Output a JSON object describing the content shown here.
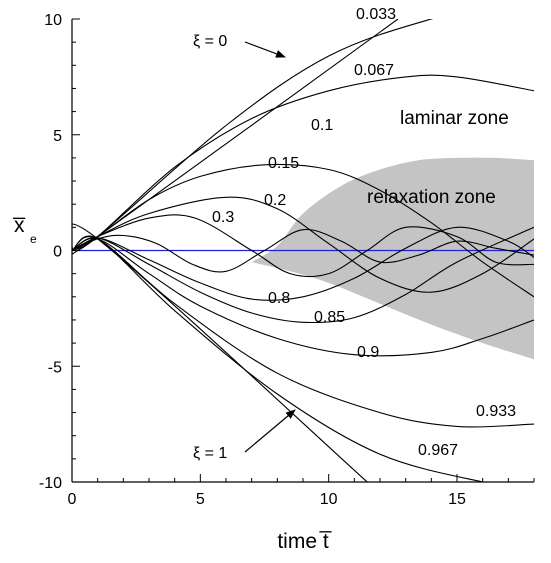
{
  "chart_data": {
    "type": "line",
    "title": "",
    "xlabel": "time t̅",
    "ylabel": "x̅",
    "ylabel_sub": "e",
    "xlim": [
      0,
      18
    ],
    "ylim": [
      -10,
      10
    ],
    "x_ticks": [
      "0",
      "5",
      "10",
      "15"
    ],
    "y_ticks": [
      "10",
      "5",
      "0",
      "-5",
      "-10"
    ],
    "grid": false,
    "legend": "none",
    "colors": {
      "curves": "#000000",
      "zero_line": "#1f1fe0",
      "relaxation_zone": "#c4c4c4"
    },
    "curve_labels": [
      "0.033",
      "0.067",
      "0.1",
      "0.15",
      "0.2",
      "0.3",
      "0.8",
      "0.85",
      "0.9",
      "0.933",
      "0.967"
    ],
    "annotations": {
      "xi_zero": "ξ = 0",
      "xi_one": "ξ = 1",
      "laminar_zone": "laminar zone",
      "relaxation_zone": "relaxation zone"
    },
    "series": [
      {
        "xi": 0,
        "x": [
          0,
          1,
          12.7
        ],
        "y": [
          0,
          0.6,
          10.0
        ]
      },
      {
        "xi": 0.033,
        "x": [
          0,
          1,
          6,
          10,
          14,
          18
        ],
        "y": [
          0,
          0.6,
          5.4,
          8.4,
          10.0,
          11.0
        ]
      },
      {
        "xi": 0.067,
        "x": [
          0,
          1,
          4,
          7,
          10,
          13,
          15,
          18
        ],
        "y": [
          0,
          0.6,
          3.6,
          5.7,
          6.9,
          7.5,
          7.5,
          6.9
        ]
      },
      {
        "xi": 0.1,
        "x": [
          0,
          1,
          3,
          5,
          7.5,
          10,
          12,
          14,
          16,
          18
        ],
        "y": [
          0,
          0.6,
          2.2,
          3.2,
          3.7,
          3.5,
          2.6,
          1.2,
          -0.5,
          -2.0
        ]
      },
      {
        "xi": 0.15,
        "x": [
          0,
          1,
          3,
          6,
          8,
          10,
          12,
          14,
          16,
          18
        ],
        "y": [
          0,
          0.6,
          1.6,
          2.3,
          1.8,
          0.3,
          -1.2,
          -1.8,
          -1.0,
          0.5
        ]
      },
      {
        "xi": 0.2,
        "x": [
          0,
          1,
          3,
          4.8,
          7,
          8.5,
          10,
          11.5,
          13,
          15,
          16.5,
          18
        ],
        "y": [
          0,
          0.6,
          1.4,
          1.4,
          0.0,
          -1.0,
          -1.0,
          0.0,
          1.0,
          0.6,
          -0.5,
          -0.6
        ]
      },
      {
        "xi": 0.3,
        "x": [
          0,
          1,
          2,
          3.3,
          4.7,
          6,
          7.5,
          9,
          10.5,
          12,
          13.5,
          15,
          16.5,
          18
        ],
        "y": [
          0,
          0.5,
          0.65,
          0.3,
          -0.6,
          -0.9,
          0.0,
          0.9,
          0.4,
          -0.5,
          -0.2,
          0.4,
          0.1,
          -0.2
        ]
      },
      {
        "xi": 0.8,
        "x": [
          0,
          1,
          3,
          5,
          7,
          9,
          11,
          13,
          15,
          17,
          18
        ],
        "y": [
          0,
          0.55,
          -0.4,
          -1.4,
          -2.1,
          -2.0,
          -1.2,
          0.1,
          1.0,
          0.4,
          -0.3
        ]
      },
      {
        "xi": 0.85,
        "x": [
          0,
          1,
          3,
          5,
          7,
          9,
          11,
          13,
          15,
          18
        ],
        "y": [
          0,
          0.55,
          -0.6,
          -1.8,
          -2.7,
          -3.1,
          -2.9,
          -1.9,
          -0.5,
          1.0
        ]
      },
      {
        "xi": 0.9,
        "x": [
          0,
          1,
          3,
          5,
          8,
          11,
          14,
          16,
          18
        ],
        "y": [
          0,
          0.5,
          -1.0,
          -2.4,
          -3.8,
          -4.5,
          -4.4,
          -3.8,
          -3.0
        ]
      },
      {
        "xi": 0.933,
        "x": [
          0,
          1,
          4,
          8,
          12,
          15,
          18
        ],
        "y": [
          0,
          0.5,
          -2.3,
          -5.3,
          -7.0,
          -7.6,
          -7.5
        ]
      },
      {
        "xi": 0.967,
        "x": [
          0,
          1,
          4,
          8,
          12,
          16,
          18
        ],
        "y": [
          0,
          0.5,
          -2.6,
          -6.2,
          -8.8,
          -10.0,
          -10.3
        ]
      },
      {
        "xi": 1,
        "x": [
          0,
          1,
          11.5
        ],
        "y": [
          0,
          0.5,
          -10.0
        ]
      }
    ],
    "relaxation_zone": {
      "x_upper": [
        7.0,
        8.0,
        9.0,
        10.5,
        12,
        13.5,
        15,
        16.5,
        18
      ],
      "y_upper": [
        -0.5,
        0.2,
        1.6,
        2.8,
        3.5,
        3.9,
        4.0,
        4.0,
        3.9
      ],
      "x_lower": [
        18,
        16,
        14,
        12,
        10,
        8.5,
        7.0
      ],
      "y_lower": [
        -4.7,
        -4.0,
        -3.2,
        -2.3,
        -1.4,
        -0.9,
        -0.5
      ]
    }
  }
}
